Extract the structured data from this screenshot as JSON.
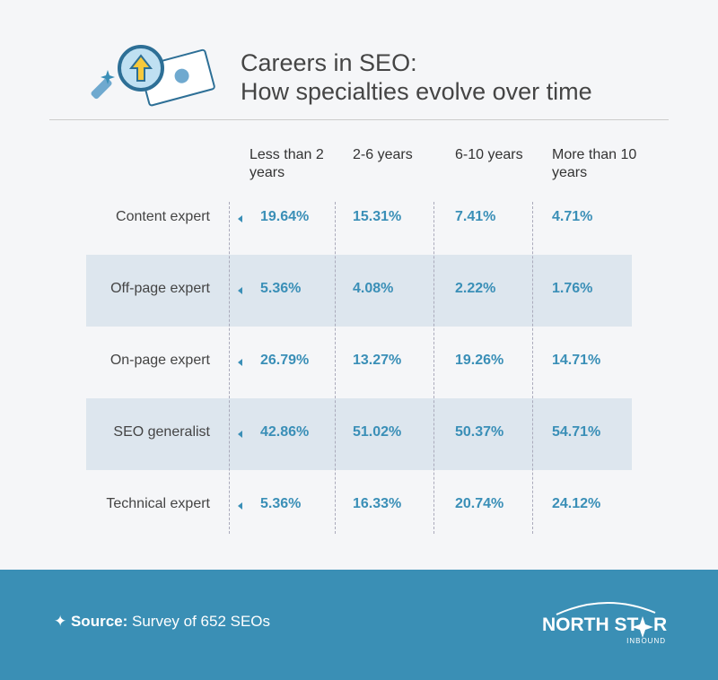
{
  "header": {
    "title_lines": [
      "Careers in SEO:",
      "How specialties evolve over time"
    ]
  },
  "table": {
    "columns": [
      "Less than 2 years",
      "2-6 years",
      "6-10 years",
      "More than 10 years"
    ],
    "rows": [
      {
        "label": "Content expert",
        "values": [
          "19.64%",
          "15.31%",
          "7.41%",
          "4.71%"
        ]
      },
      {
        "label": "Off-page expert",
        "values": [
          "5.36%",
          "4.08%",
          "2.22%",
          "1.76%"
        ]
      },
      {
        "label": "On-page expert",
        "values": [
          "26.79%",
          "13.27%",
          "19.26%",
          "14.71%"
        ]
      },
      {
        "label": "SEO generalist",
        "values": [
          "42.86%",
          "51.02%",
          "50.37%",
          "54.71%"
        ]
      },
      {
        "label": "Technical expert",
        "values": [
          "5.36%",
          "16.33%",
          "20.74%",
          "24.12%"
        ]
      }
    ]
  },
  "footer": {
    "source_label": "Source:",
    "source_text": "Survey of 652 SEOs",
    "logo_parts": [
      "NORTH ST",
      "R"
    ],
    "logo_sub": "INBOUND"
  }
}
